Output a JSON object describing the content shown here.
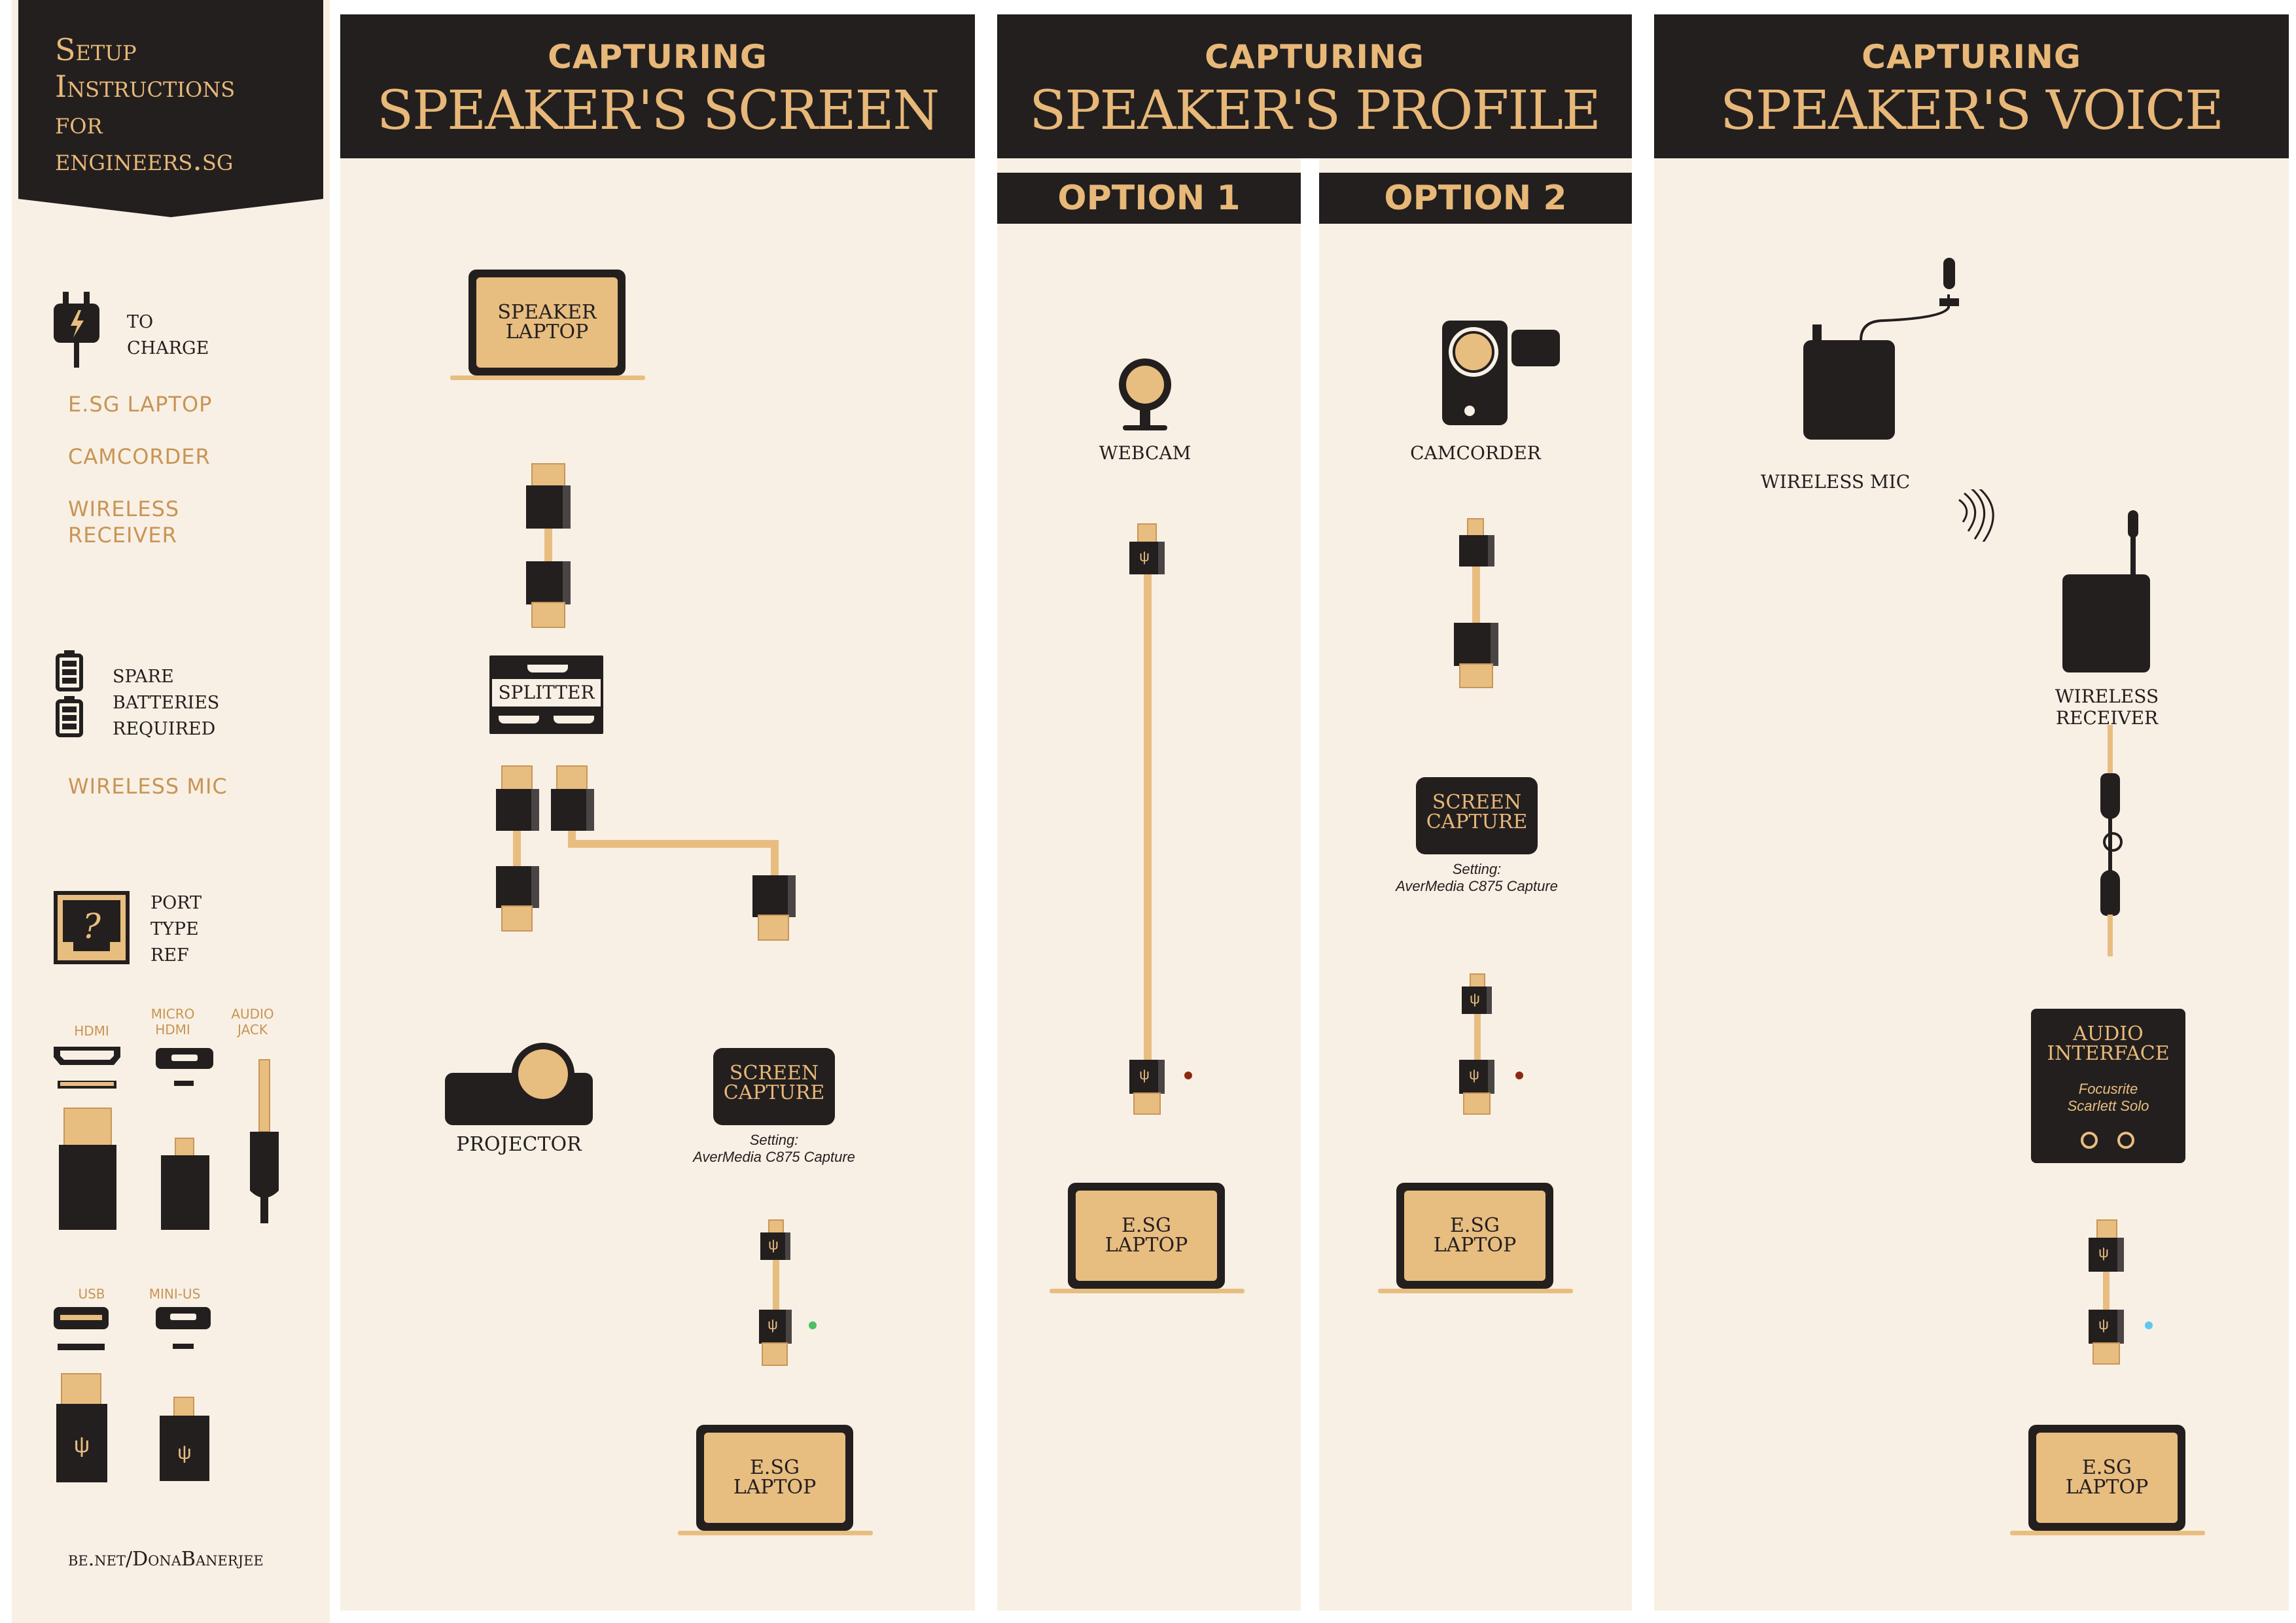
{
  "sidebar": {
    "title_lines": [
      "Setup",
      "Instructions",
      "for",
      "engineers.sg"
    ],
    "charge": {
      "heading_lines": [
        "to",
        "charge"
      ],
      "items": [
        "E.SG LAPTOP",
        "CAMCORDER",
        "WIRELESS\nRECEIVER"
      ]
    },
    "batteries": {
      "heading_lines": [
        "spare",
        "batteries",
        "required"
      ],
      "items": [
        "WIRELESS MIC"
      ]
    },
    "port_ref": {
      "heading_lines": [
        "port",
        "type",
        "ref"
      ],
      "ports": [
        "HDMI",
        "MICRO\nHDMI",
        "AUDIO\nJACK",
        "USB",
        "MINI-US"
      ]
    },
    "footer": "be.net/DonaBanerjee"
  },
  "screen_section": {
    "caption": "CAPTURING",
    "title": "SPEAKER'S SCREEN",
    "laptop_label": "SPEAKER\nLAPTOP",
    "splitter_label": "SPLITTER",
    "projector_label": "PROJECTOR",
    "capture_label": "SCREEN\nCAPTURE",
    "setting_label": "Setting:",
    "setting_value": "AverMedia C875 Capture",
    "esg_laptop_label": "E.SG\nLAPTOP",
    "status_dot_color": "#4cc062"
  },
  "profile_section": {
    "caption": "CAPTURING",
    "title": "SPEAKER'S PROFILE",
    "option1": {
      "label": "OPTION 1",
      "device_label": "WEBCAM",
      "esg_laptop_label": "E.SG\nLAPTOP",
      "status_dot_color": "#8b2a10"
    },
    "option2": {
      "label": "OPTION 2",
      "device_label": "CAMCORDER",
      "capture_label": "SCREEN\nCAPTURE",
      "setting_label": "Setting:",
      "setting_value": "AverMedia C875 Capture",
      "esg_laptop_label": "E.SG\nLAPTOP",
      "status_dot_color": "#8b2a10"
    }
  },
  "voice_section": {
    "caption": "CAPTURING",
    "title": "SPEAKER'S VOICE",
    "mic_label": "WIRELESS MIC",
    "receiver_label": "WIRELESS RECEIVER",
    "interface_label": "AUDIO\nINTERFACE",
    "interface_model": "Focusrite\nScarlett Solo",
    "esg_laptop_label": "E.SG\nLAPTOP",
    "status_dot_color": "#5bc8f0"
  },
  "colors": {
    "dark": "#231f1f",
    "gold": "#e8bd80",
    "accent_text": "#c89456",
    "panel": "#f8f0e4"
  },
  "icons": [
    "plug-icon",
    "battery-icon",
    "port-question-icon",
    "usb-icon",
    "wifi-signal-icon"
  ]
}
